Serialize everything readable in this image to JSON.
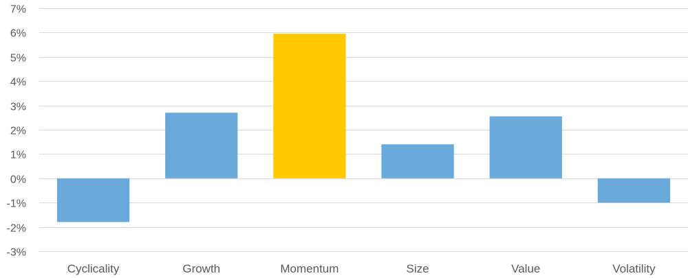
{
  "chart_data": {
    "type": "bar",
    "categories": [
      "Cyclicality",
      "Growth",
      "Momentum",
      "Size",
      "Value",
      "Volatility"
    ],
    "values": [
      -1.8,
      2.7,
      5.95,
      1.4,
      2.55,
      -1.0
    ],
    "unit": "%",
    "ylim": [
      -3,
      7
    ],
    "yticks": [
      -3,
      -2,
      -1,
      0,
      1,
      2,
      3,
      4,
      5,
      6,
      7
    ],
    "ytick_labels": [
      "-3%",
      "-2%",
      "-1%",
      "0%",
      "1%",
      "2%",
      "3%",
      "4%",
      "5%",
      "6%",
      "7%"
    ],
    "grid": true,
    "colors": {
      "default": "#6aaadb",
      "highlight": "#ffc800",
      "highlight_category": "Momentum"
    },
    "title": "",
    "xlabel": "",
    "ylabel": ""
  }
}
